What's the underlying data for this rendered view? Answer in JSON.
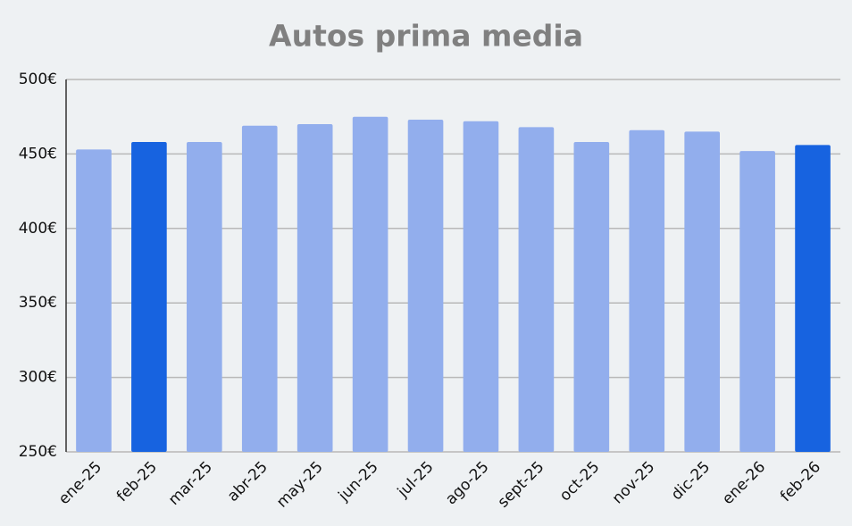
{
  "chart_data": {
    "type": "bar",
    "title": "Autos prima media",
    "categories": [
      "ene-25",
      "feb-25",
      "mar-25",
      "abr-25",
      "may-25",
      "jun-25",
      "jul-25",
      "ago-25",
      "sept-25",
      "oct-25",
      "nov-25",
      "dic-25",
      "ene-26",
      "feb-26"
    ],
    "values": [
      453,
      458,
      458,
      469,
      470,
      475,
      473,
      472,
      468,
      458,
      466,
      465,
      452,
      456
    ],
    "colors": [
      "#92aeed",
      "#1763e0",
      "#92aeed",
      "#92aeed",
      "#92aeed",
      "#92aeed",
      "#92aeed",
      "#92aeed",
      "#92aeed",
      "#92aeed",
      "#92aeed",
      "#92aeed",
      "#92aeed",
      "#1763e0"
    ],
    "ylim": [
      250,
      500
    ],
    "yticks": [
      {
        "value": 250,
        "label": "250€"
      },
      {
        "value": 300,
        "label": "300€"
      },
      {
        "value": 350,
        "label": "350€"
      },
      {
        "value": 400,
        "label": "400€"
      },
      {
        "value": 450,
        "label": "450€"
      },
      {
        "value": 500,
        "label": "500€"
      }
    ],
    "grid": true
  }
}
